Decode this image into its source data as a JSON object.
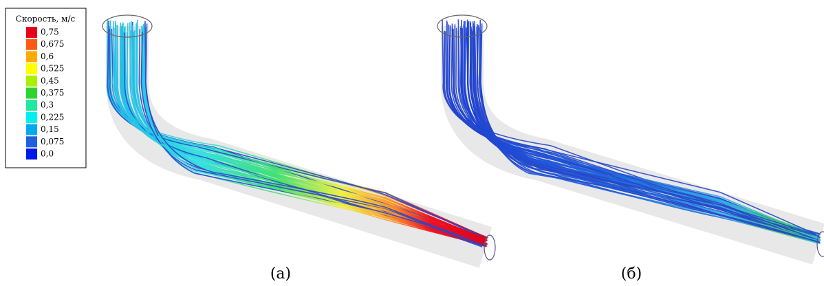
{
  "legend": {
    "title": "Скорость, м/с",
    "items": [
      {
        "label": "0,75",
        "color": "#e8001a"
      },
      {
        "label": "0,675",
        "color": "#ff5a14"
      },
      {
        "label": "0,6",
        "color": "#ffaa00"
      },
      {
        "label": "0,525",
        "color": "#ffff00"
      },
      {
        "label": "0,45",
        "color": "#a8f000"
      },
      {
        "label": "0,375",
        "color": "#2ed42e"
      },
      {
        "label": "0,3",
        "color": "#20e8a0"
      },
      {
        "label": "0,225",
        "color": "#00f0f0"
      },
      {
        "label": "0,15",
        "color": "#00a8ee"
      },
      {
        "label": "0,075",
        "color": "#2060e0"
      },
      {
        "label": "0,0",
        "color": "#0018e8"
      }
    ]
  },
  "captions": [
    "(а)",
    "(б)"
  ]
}
